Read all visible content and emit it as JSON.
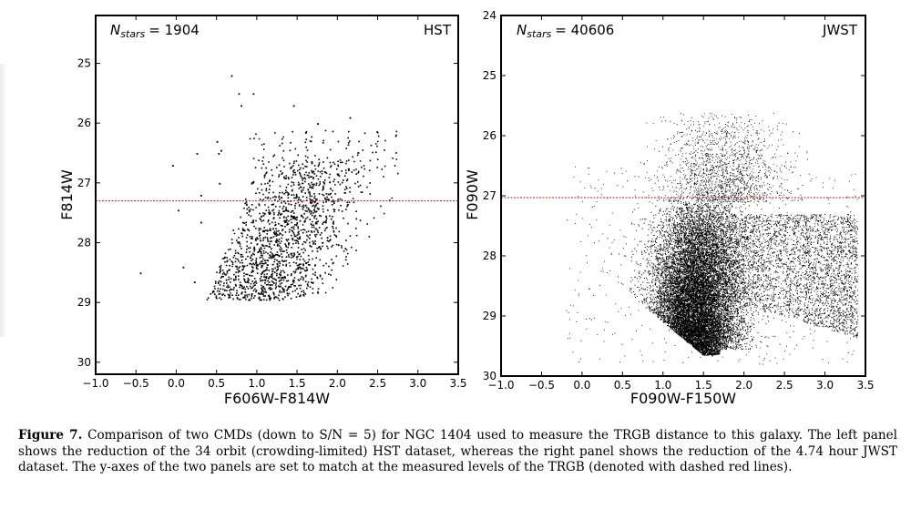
{
  "chart_data": [
    {
      "type": "scatter",
      "panel": "left",
      "annotation_count": "N<sub>stars</sub> = 1904",
      "count_label_prefix": "N",
      "count_label_sub": "stars",
      "count_label_value": "= 1904",
      "telescope_label": "HST",
      "xlabel": "F606W-F814W",
      "ylabel": "F814W",
      "xlim": [
        -1.0,
        3.5
      ],
      "ylim": [
        30.2,
        24.2
      ],
      "y_inverted": true,
      "x_ticks": [
        "−1.0",
        "−0.5",
        "0.0",
        "0.5",
        "1.0",
        "1.5",
        "2.0",
        "2.5",
        "3.0",
        "3.5"
      ],
      "y_ticks": [
        "25",
        "26",
        "27",
        "28",
        "29",
        "30"
      ],
      "trgb_line": 27.3,
      "n_stars": 1904,
      "point_cloud": {
        "description_ref": "red clump-like diagonal band",
        "color_range": [
          0.3,
          2.9
        ],
        "mag_range": [
          25.2,
          29.0
        ]
      },
      "outlier_points": [
        {
          "x": 0.68,
          "y": 25.2
        },
        {
          "x": 0.77,
          "y": 25.5
        },
        {
          "x": 0.95,
          "y": 25.5
        },
        {
          "x": 0.8,
          "y": 25.7
        },
        {
          "x": 1.45,
          "y": 25.7
        },
        {
          "x": 2.15,
          "y": 25.9
        },
        {
          "x": 1.75,
          "y": 26.0
        },
        {
          "x": 1.6,
          "y": 26.15
        },
        {
          "x": 0.5,
          "y": 26.3
        },
        {
          "x": 0.55,
          "y": 26.45
        },
        {
          "x": 0.25,
          "y": 26.5
        },
        {
          "x": 0.52,
          "y": 26.5
        },
        {
          "x": -0.05,
          "y": 26.7
        },
        {
          "x": 0.53,
          "y": 27.0
        },
        {
          "x": 0.3,
          "y": 27.2
        },
        {
          "x": 0.02,
          "y": 27.45
        },
        {
          "x": 0.3,
          "y": 27.65
        },
        {
          "x": -0.45,
          "y": 28.5
        },
        {
          "x": 0.08,
          "y": 28.4
        },
        {
          "x": 0.22,
          "y": 28.65
        }
      ]
    },
    {
      "type": "scatter",
      "panel": "right",
      "count_label_prefix": "N",
      "count_label_sub": "stars",
      "count_label_value": "= 40606",
      "telescope_label": "JWST",
      "xlabel": "F090W-F150W",
      "ylabel": "F090W",
      "xlim": [
        -1.0,
        3.5
      ],
      "ylim": [
        30.0,
        24.0
      ],
      "y_inverted": true,
      "x_ticks": [
        "−1.0",
        "−0.5",
        "0.0",
        "0.5",
        "1.0",
        "1.5",
        "2.0",
        "2.5",
        "3.0",
        "3.5"
      ],
      "y_ticks": [
        "24",
        "25",
        "26",
        "27",
        "28",
        "29",
        "30"
      ],
      "trgb_line": 27.03,
      "n_stars": 40606
    }
  ],
  "caption": {
    "label": "Figure 7.",
    "text": "Comparison of two CMDs (down to S/N = 5) for NGC 1404 used to measure the TRGB distance to this galaxy. The left panel shows the reduction of the 34 orbit (crowding-limited) HST dataset, whereas the right panel shows the reduction of the 4.74 hour JWST dataset. The y-axes of the two panels are set to match at the measured levels of the TRGB (denoted with dashed red lines)."
  }
}
